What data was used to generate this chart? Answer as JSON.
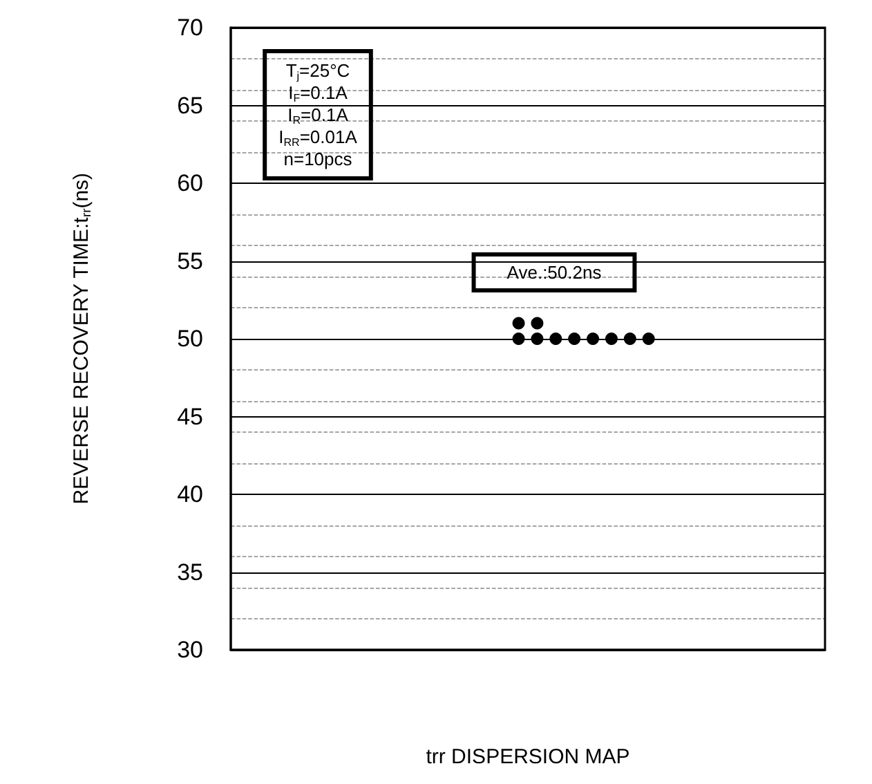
{
  "chart_data": {
    "type": "scatter",
    "xlabel": "trr DISPERSION MAP",
    "ylabel": "REVERSE RECOVERY TIME:t$_{rr}$(ns)",
    "annotations": [
      "T$_{j}$=25°C\nI$_{F}$=0.1A\nI$_{R}$=0.1A\nI$_{RR}$=0.01A\nn=10pcs",
      "Ave.:50.2ns"
    ],
    "categories": [
      null,
      null,
      null,
      null,
      null,
      null,
      null,
      null,
      null,
      null,
      null,
      null,
      null,
      null,
      null,
      null,
      null,
      null,
      null,
      null,
      null,
      null,
      null,
      null,
      null,
      null,
      null,
      null,
      null,
      null,
      null,
      null
    ],
    "series": [
      {
        "color": "#000000",
        "values": [
          null,
          null,
          null,
          null,
          null,
          null,
          null,
          null,
          null,
          null,
          null,
          null,
          null,
          null,
          null,
          50,
          50,
          50,
          50,
          50,
          50,
          50,
          50,
          null,
          null,
          null,
          null,
          null,
          null,
          null,
          null,
          null
        ]
      },
      {
        "color": "#000000",
        "values": [
          null,
          null,
          null,
          null,
          null,
          null,
          null,
          null,
          null,
          null,
          null,
          null,
          null,
          null,
          null,
          51,
          51,
          null,
          null,
          null,
          null,
          null,
          null,
          null,
          null,
          null,
          null,
          null,
          null,
          null,
          null,
          null
        ]
      }
    ],
    "ylim": [
      30,
      70
    ],
    "yticks": [
      30,
      35,
      40,
      45,
      50,
      55,
      60,
      65,
      70
    ],
    "grid": "y",
    "marker": "circle",
    "tick_labels": "y"
  }
}
